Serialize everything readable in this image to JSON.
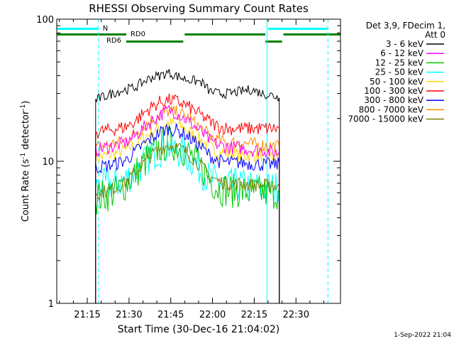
{
  "chart_data": {
    "type": "line",
    "title": "RHESSI Observing Summary Count Rates",
    "xlabel": "Start Time (30-Dec-16 21:04:02)",
    "ylabel": "Count Rate (s",
    "ylabel_sup": "-1",
    "ylabel_tail": " detector",
    "ylabel_tail_sup": "-1",
    "ylabel_close": ")",
    "y_scale": "log",
    "ylim": [
      1,
      100
    ],
    "y_ticks": [
      {
        "value": 1,
        "label": "1"
      },
      {
        "value": 10,
        "label": "10"
      },
      {
        "value": 100,
        "label": "100"
      }
    ],
    "x_ticks": [
      "21:15",
      "21:30",
      "21:45",
      "22:00",
      "22:15",
      "22:30"
    ],
    "x_tick_minutes": [
      15,
      30,
      45,
      60,
      75,
      90
    ],
    "xlim_minutes": [
      4.03,
      106.0
    ],
    "legend_header": [
      "Det 3,9, FDecim 1,",
      "Att 0"
    ],
    "legend_position": "right",
    "data_start_minute": 17.6,
    "data_end_minute": 84.0,
    "series": [
      {
        "name": "3 - 6 keV",
        "color": "#000000",
        "x": [
          18,
          22,
          26,
          29,
          32,
          35,
          38,
          41,
          44,
          47,
          50,
          53,
          56,
          59,
          62,
          66,
          70,
          74,
          78,
          82,
          84
        ],
        "y": [
          27,
          29,
          31,
          32,
          33,
          36,
          39,
          40,
          42,
          40,
          38,
          37,
          36,
          31,
          30,
          30,
          31,
          32,
          30,
          29,
          28
        ]
      },
      {
        "name": "6 - 12 keV",
        "color": "#ff00ff",
        "x": [
          18,
          22,
          26,
          29,
          32,
          35,
          38,
          41,
          44,
          47,
          50,
          53,
          56,
          59,
          62,
          66,
          70,
          74,
          78,
          82,
          84
        ],
        "y": [
          12,
          12.5,
          13,
          13.5,
          15,
          17,
          19,
          21,
          23,
          22,
          20,
          18,
          16,
          14,
          13,
          12.5,
          12.5,
          12,
          12,
          11.5,
          11.5
        ]
      },
      {
        "name": "12 - 25 keV",
        "color": "#00c800",
        "x": [
          18,
          22,
          26,
          29,
          32,
          35,
          38,
          41,
          44,
          47,
          50,
          53,
          56,
          59,
          62,
          66,
          70,
          74,
          78,
          82,
          84
        ],
        "y": [
          5.5,
          5.8,
          6.2,
          7,
          8,
          9.5,
          11,
          12.5,
          13.5,
          13,
          12,
          10.5,
          9,
          7.5,
          6.5,
          6.2,
          6.2,
          6,
          6,
          6,
          6
        ]
      },
      {
        "name": "25 - 50 keV",
        "color": "#00ffff",
        "x": [
          18,
          22,
          26,
          29,
          32,
          35,
          38,
          41,
          44,
          47,
          50,
          53,
          56,
          59,
          62,
          66,
          70,
          74,
          78,
          82,
          84
        ],
        "y": [
          6.5,
          6.8,
          7,
          7.5,
          8.5,
          9.5,
          11,
          12,
          12.5,
          12,
          11,
          10,
          8.5,
          7.5,
          7,
          6.8,
          6.8,
          6.6,
          6.5,
          6.5,
          6.5
        ]
      },
      {
        "name": "50 - 100 keV",
        "color": "#ffd700",
        "x": [
          18,
          22,
          26,
          29,
          32,
          35,
          38,
          41,
          44,
          47,
          50,
          53,
          56,
          59,
          62,
          66,
          70,
          74,
          78,
          82,
          84
        ],
        "y": [
          10.5,
          11,
          11.5,
          12,
          13,
          14.5,
          16,
          17.5,
          18.5,
          18,
          17,
          15.5,
          14,
          12.5,
          11.5,
          11.5,
          11,
          11,
          11,
          10.5,
          10.5
        ]
      },
      {
        "name": "100 - 300 keV",
        "color": "#ff0000",
        "x": [
          18,
          22,
          26,
          29,
          32,
          35,
          38,
          41,
          44,
          47,
          50,
          53,
          56,
          59,
          62,
          66,
          70,
          74,
          78,
          82,
          84
        ],
        "y": [
          16,
          16.5,
          17,
          17.5,
          19,
          21.5,
          24,
          26,
          27,
          26.5,
          25,
          23,
          21,
          19,
          17.5,
          17,
          17,
          17,
          17,
          17,
          17
        ]
      },
      {
        "name": "300 - 800 keV",
        "color": "#0000ff",
        "x": [
          18,
          22,
          26,
          29,
          32,
          35,
          38,
          41,
          44,
          47,
          50,
          53,
          56,
          59,
          62,
          66,
          70,
          74,
          78,
          82,
          84
        ],
        "y": [
          9,
          9.3,
          9.7,
          10.2,
          11.5,
          13,
          14.5,
          16,
          17,
          16.5,
          15.5,
          14,
          12.5,
          11,
          10,
          9.8,
          9.8,
          9.6,
          9.5,
          9.5,
          9.5
        ]
      },
      {
        "name": "800 - 7000 keV",
        "color": "#ff8c00",
        "x": [
          18,
          22,
          26,
          29,
          32,
          35,
          38,
          41,
          44,
          47,
          50,
          53,
          56,
          59,
          62,
          66,
          70,
          74,
          78,
          82,
          84
        ],
        "y": [
          12.5,
          13,
          13.5,
          14.2,
          15.5,
          17.5,
          19.5,
          21.5,
          22.5,
          22,
          21,
          19,
          17,
          15,
          14,
          13.5,
          13.5,
          13.2,
          13,
          12.8,
          12.8
        ]
      },
      {
        "name": "7000 - 15000 keV",
        "color": "#808000",
        "x": [
          18,
          22,
          26,
          29,
          32,
          35,
          38,
          41,
          44,
          47,
          50,
          53,
          56,
          59,
          62,
          66,
          70,
          74,
          78,
          82,
          84
        ],
        "y": [
          6,
          6.2,
          6.6,
          7.2,
          8.2,
          9.5,
          11,
          12.2,
          13,
          12.6,
          11.8,
          10.5,
          9.2,
          8,
          7.2,
          7,
          7,
          6.8,
          6.8,
          6.7,
          6.7
        ]
      }
    ],
    "annotations": {
      "night_label": "N",
      "night_intervals": [
        [
          4.03,
          19.0
        ],
        [
          80.0,
          101.5
        ]
      ],
      "night_color": "#00ffff",
      "rd0_label": "RD0",
      "rd0_intervals": [
        [
          4.03,
          29.0
        ],
        [
          50.0,
          79.0
        ],
        [
          85.5,
          106.0
        ]
      ],
      "rd6_label": "RD6",
      "rd6_intervals": [
        [
          29.0,
          49.5
        ],
        [
          79.0,
          85.0
        ]
      ],
      "bar_color": "#008000",
      "cyan_solid_lines": [
        4.03,
        79.6
      ],
      "cyan_dashed_lines": [
        19.0,
        101.5
      ]
    }
  },
  "footer_date": "1-Sep-2022 21:04"
}
